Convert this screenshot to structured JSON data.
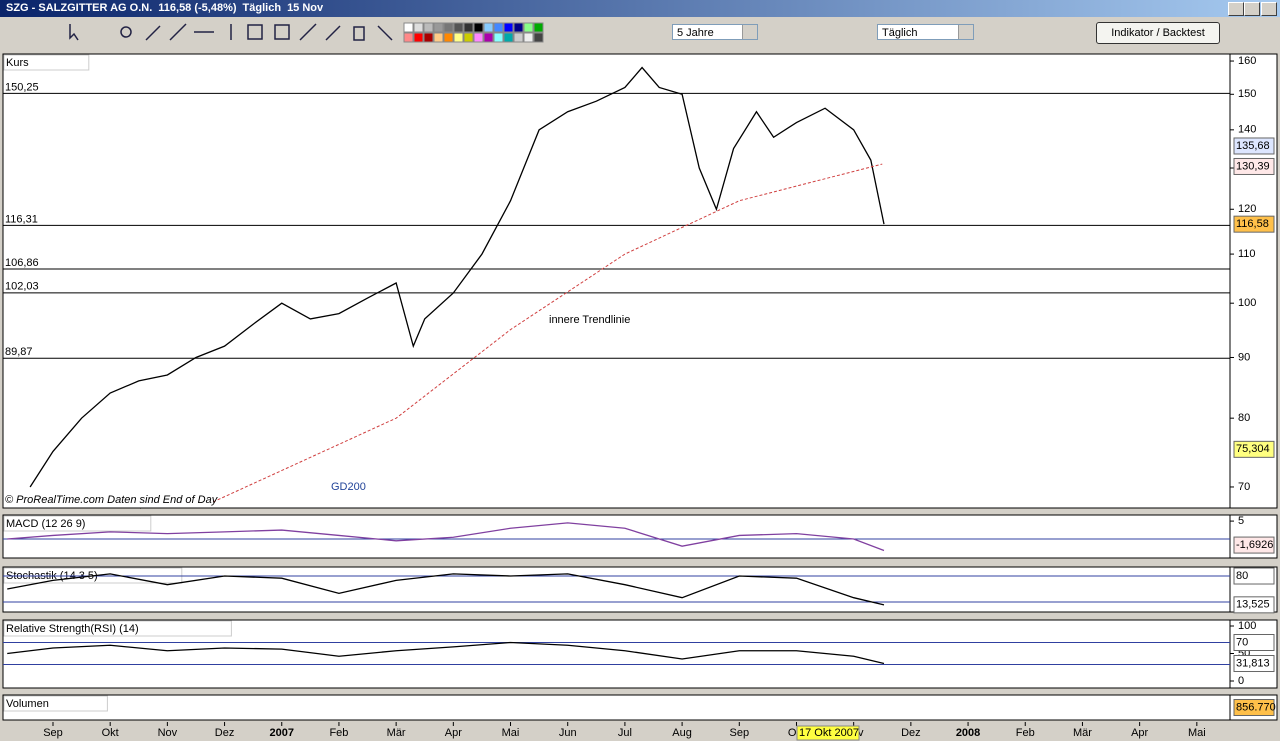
{
  "window": {
    "title": "SZG - SALZGITTER AG O.N.",
    "quote": "116,58 (-5,48%)",
    "interval": "Täglich",
    "date": "15 Nov"
  },
  "toolbar": {
    "period": "5 Jahre",
    "interval": "Täglich",
    "button": "Indikator / Backtest"
  },
  "chart_data": [
    {
      "type": "line",
      "title": "Kurs",
      "log_scale": true,
      "xlim": [
        -0.874,
        20.58
      ],
      "ylim": [
        67.2,
        162.2
      ],
      "yticks": [
        70,
        80,
        90,
        100,
        110,
        120,
        130,
        140,
        150,
        160
      ],
      "xticks": [
        {
          "value": 0,
          "label": "Sep"
        },
        {
          "value": 1,
          "label": "Okt"
        },
        {
          "value": 2,
          "label": "Nov"
        },
        {
          "value": 3,
          "label": "Dez"
        },
        {
          "value": 4,
          "label": "2007"
        },
        {
          "value": 5,
          "label": "Feb"
        },
        {
          "value": 6,
          "label": "Mär"
        },
        {
          "value": 7,
          "label": "Apr"
        },
        {
          "value": 8,
          "label": "Mai"
        },
        {
          "value": 9,
          "label": "Jun"
        },
        {
          "value": 10,
          "label": "Jul"
        },
        {
          "value": 11,
          "label": "Aug"
        },
        {
          "value": 12,
          "label": "Sep"
        },
        {
          "value": 13,
          "label": "Okt"
        },
        {
          "value": 14,
          "label": "Nov"
        },
        {
          "value": 15,
          "label": "Dez"
        },
        {
          "value": 16,
          "label": "2008"
        },
        {
          "value": 17,
          "label": "Feb"
        },
        {
          "value": 18,
          "label": "Mär"
        },
        {
          "value": 19,
          "label": "Apr"
        },
        {
          "value": 20,
          "label": "Mai"
        }
      ],
      "x": [
        -0.4,
        0,
        0.5,
        1,
        1.5,
        2,
        2.5,
        3,
        3.5,
        4,
        4.5,
        5,
        5.5,
        6,
        6.3,
        6.5,
        7,
        7.5,
        8,
        8.5,
        9,
        9.5,
        10,
        10.3,
        10.6,
        11,
        11.3,
        11.6,
        11.9,
        12.3,
        12.6,
        13,
        13.5,
        14,
        14.3,
        14.53
      ],
      "series": [
        {
          "name": "Kurs",
          "color": "#000000",
          "values": [
            70,
            75,
            80,
            84,
            86,
            87,
            90,
            92,
            96,
            100,
            97,
            98,
            101,
            104,
            92,
            97,
            102,
            110,
            122,
            140,
            145,
            148,
            152,
            158,
            152,
            150,
            130,
            120,
            135,
            145,
            138,
            142,
            146,
            140,
            132,
            116.58
          ]
        },
        {
          "name": "GD200",
          "color": "#d04040",
          "x": [
            2.8,
            6,
            8,
            10,
            12,
            14.5
          ],
          "values": [
            68,
            80,
            95,
            110,
            122,
            131
          ]
        }
      ],
      "levels": [
        {
          "value": 150.25,
          "label": "150,25"
        },
        {
          "value": 116.31,
          "label": "116,31"
        },
        {
          "value": 106.86,
          "label": "106,86"
        },
        {
          "value": 102.03,
          "label": "102,03"
        },
        {
          "value": 89.87,
          "label": "89,87"
        }
      ],
      "badges": [
        {
          "value": 135.68,
          "label": "135,68",
          "color": "#dde6ff"
        },
        {
          "value": 130.39,
          "label": "130,39",
          "color": "#ffe8e8"
        },
        {
          "value": 116.58,
          "label": "116,58",
          "color": "#ffc04a"
        },
        {
          "value": 75.304,
          "label": "75,304",
          "color": "#ffff80"
        }
      ],
      "annotations": [
        "innere Trendlinie",
        "GD200"
      ],
      "copyright": "© ProRealTime.com  Daten sind End of Day",
      "date_marker": "17 Okt 2007"
    },
    {
      "type": "line",
      "title": "MACD (12 26 9)",
      "ylim": [
        -5.3,
        6.7
      ],
      "yticks": [
        5
      ],
      "hlines": [
        0
      ],
      "x": [
        -0.8,
        0,
        1,
        2,
        3,
        4,
        5,
        6,
        7,
        8,
        9,
        10,
        11,
        12,
        13,
        14,
        14.53
      ],
      "series": [
        {
          "name": "MACD",
          "color": "#8040a0",
          "values": [
            0,
            1,
            2,
            1.5,
            2,
            2.5,
            1,
            -0.5,
            0.5,
            3,
            4.5,
            3,
            -2,
            1,
            1.5,
            0,
            -3.2
          ]
        }
      ],
      "badges": [
        {
          "value": -1.6926,
          "label": "-1,6926",
          "color": "#ffe8e8"
        }
      ]
    },
    {
      "type": "line",
      "title": "Stochastik (14 3 5)",
      "ylim": [
        -3,
        100.8
      ],
      "yticks": [],
      "hlines": [
        80,
        20
      ],
      "x": [
        -0.8,
        0,
        1,
        2,
        3,
        4,
        5,
        6,
        7,
        8,
        9,
        10,
        11,
        12,
        13,
        14,
        14.53
      ],
      "series": [
        {
          "name": "Stochastik",
          "color": "#000000",
          "values": [
            50,
            70,
            85,
            60,
            80,
            75,
            40,
            70,
            85,
            80,
            85,
            60,
            30,
            80,
            75,
            30,
            13.525
          ]
        }
      ],
      "badges": [
        {
          "value": 80,
          "label": "80",
          "color": "#ffffff"
        },
        {
          "value": 13.525,
          "label": "13,525",
          "color": "#ffffff"
        }
      ]
    },
    {
      "type": "line",
      "title": "Relative Strength(RSI) (14)",
      "ylim": [
        -12.7,
        110.9
      ],
      "yticks": [
        0,
        50,
        100
      ],
      "hlines": [
        70,
        30
      ],
      "x": [
        -0.8,
        0,
        1,
        2,
        3,
        4,
        5,
        6,
        7,
        8,
        9,
        10,
        11,
        12,
        13,
        14,
        14.53
      ],
      "series": [
        {
          "name": "RSI",
          "color": "#000000",
          "values": [
            50,
            60,
            65,
            55,
            60,
            58,
            45,
            55,
            62,
            70,
            65,
            55,
            40,
            55,
            55,
            45,
            31.813
          ]
        }
      ],
      "badges": [
        {
          "value": 70,
          "label": "70",
          "color": "#ffffff"
        },
        {
          "value": 31.813,
          "label": "31,813",
          "color": "#ffffff"
        }
      ]
    },
    {
      "type": "bar",
      "title": "Volumen",
      "badges": [
        {
          "label": "856.770",
          "color": "#ffc04a"
        }
      ]
    }
  ]
}
